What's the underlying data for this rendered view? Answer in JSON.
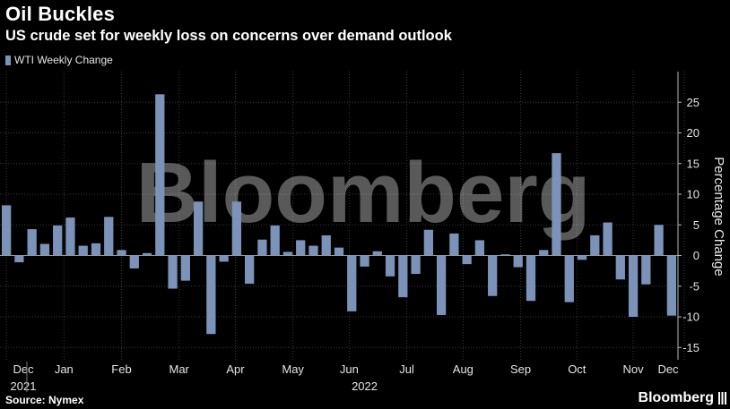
{
  "header": {
    "title": "Oil Buckles",
    "subtitle": "US crude set for weekly loss on concerns over demand outlook"
  },
  "legend": {
    "label": "WTI Weekly Change",
    "color": "#7b93b9"
  },
  "source": "Source: Nymex",
  "brand": "Bloomberg",
  "watermark": "Bloomberg",
  "colors": {
    "background": "#000000",
    "bar": "#7b93b9",
    "grid": "#3a3a3a"
  },
  "chart_data": {
    "type": "bar",
    "title": "Oil Buckles",
    "subtitle": "US crude set for weekly loss on concerns over demand outlook",
    "ylabel": "Percentage Change",
    "xlabel": "",
    "ylim": [
      -17,
      30
    ],
    "yticks": [
      25,
      20,
      15,
      10,
      5,
      0,
      -5,
      -10,
      -15
    ],
    "grid": true,
    "legend_position": "top-left",
    "series": [
      {
        "name": "WTI Weekly Change",
        "values": [
          8.2,
          -1.1,
          4.3,
          1.9,
          4.9,
          6.2,
          1.6,
          2.0,
          6.3,
          0.9,
          -2.1,
          0.4,
          26.3,
          -5.4,
          -4.1,
          8.8,
          -12.8,
          -1.0,
          8.8,
          -4.6,
          2.6,
          4.9,
          0.6,
          2.5,
          1.6,
          3.3,
          1.3,
          -9.1,
          -1.8,
          0.7,
          -3.4,
          -6.8,
          -3.0,
          4.2,
          -9.7,
          3.6,
          -1.4,
          2.5,
          -6.6,
          0.2,
          -1.9,
          -7.4,
          0.9,
          16.7,
          -7.6,
          -0.7,
          3.3,
          5.4,
          -3.9,
          -10.0,
          -4.7,
          5.0,
          -9.8
        ]
      }
    ],
    "x_labels": [
      {
        "label": "Dec",
        "year": "2021",
        "index": 0
      },
      {
        "label": "Jan",
        "index": 4.5
      },
      {
        "label": "Feb",
        "index": 9
      },
      {
        "label": "Mar",
        "index": 13.5
      },
      {
        "label": "Apr",
        "index": 17.9
      },
      {
        "label": "May",
        "index": 22.4
      },
      {
        "label": "Jun",
        "index": 26.8
      },
      {
        "label": "Jul",
        "index": 31.3
      },
      {
        "label": "Aug",
        "index": 35.7
      },
      {
        "label": "Sep",
        "index": 40.2
      },
      {
        "label": "Oct",
        "index": 44.6
      },
      {
        "label": "Nov",
        "index": 49.0
      },
      {
        "label": "Dec",
        "index": 53.0
      }
    ],
    "year_labels": [
      {
        "label": "2021",
        "index": 0
      },
      {
        "label": "2022",
        "index": 28
      }
    ]
  }
}
